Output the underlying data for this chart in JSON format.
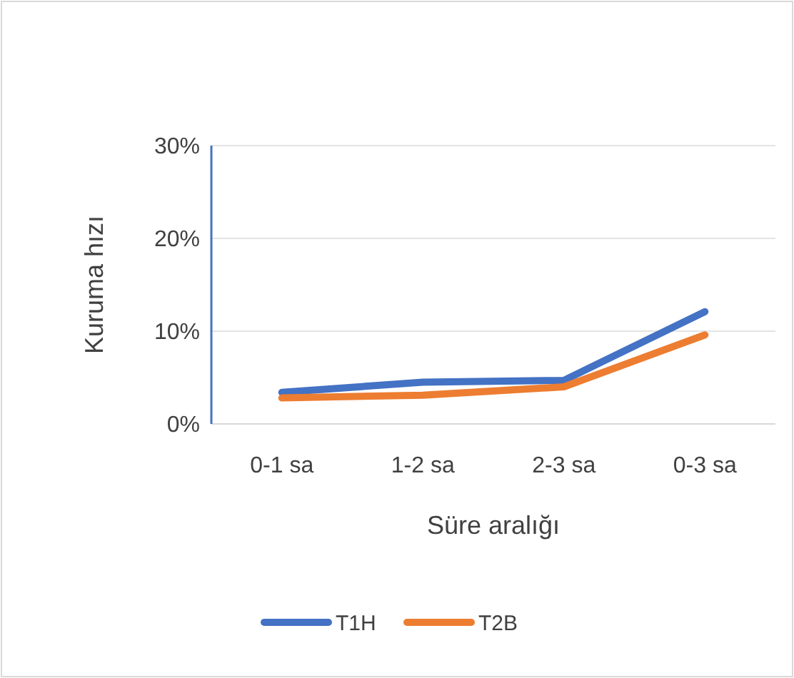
{
  "chart_data": {
    "type": "line",
    "xlabel": "Süre aralığı",
    "ylabel": "Kuruma hızı",
    "categories": [
      "0-1 sa",
      "1-2 sa",
      "2-3 sa",
      "0-3 sa"
    ],
    "series": [
      {
        "name": "T1H",
        "color": "#4472c4",
        "values": [
          0.034,
          0.045,
          0.047,
          0.121
        ]
      },
      {
        "name": "T2B",
        "color": "#ed7d31",
        "values": [
          0.028,
          0.031,
          0.04,
          0.096
        ]
      }
    ],
    "ylim": [
      0,
      0.3
    ],
    "yticks": [
      {
        "value": 0,
        "label": "0%"
      },
      {
        "value": 0.1,
        "label": "10%"
      },
      {
        "value": 0.2,
        "label": "20%"
      },
      {
        "value": 0.3,
        "label": "30%"
      }
    ],
    "grid": "y",
    "legend": "bottom"
  }
}
